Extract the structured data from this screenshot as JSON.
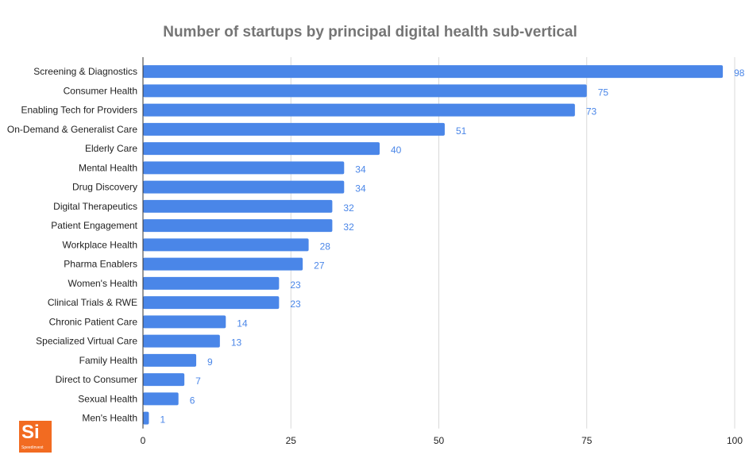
{
  "colors": {
    "bar": "#4a86e8",
    "value_label": "#4a86e8",
    "grid": "#d9d9d9",
    "axis": "#333333",
    "title": "#757575",
    "logo_bg": "#f26b21"
  },
  "logo": {
    "mark": "Si",
    "text": "Speedinvest"
  },
  "chart_data": {
    "type": "bar",
    "orientation": "horizontal",
    "title": "Number of startups by principal digital health sub-vertical",
    "xlabel": "",
    "ylabel": "",
    "xlim": [
      0,
      100
    ],
    "x_ticks": [
      0,
      25,
      50,
      75,
      100
    ],
    "grid": true,
    "data_labels": true,
    "categories": [
      "Screening & Diagnostics",
      "Consumer Health",
      "Enabling Tech for Providers",
      "On-Demand & Generalist Care",
      "Elderly Care",
      "Mental Health",
      "Drug Discovery",
      "Digital Therapeutics",
      "Patient Engagement",
      "Workplace Health",
      "Pharma Enablers",
      "Women's Health",
      "Clinical Trials & RWE",
      "Chronic Patient Care",
      "Specialized Virtual Care",
      "Family Health",
      "Direct to Consumer",
      "Sexual Health",
      "Men's Health"
    ],
    "values": [
      98,
      75,
      73,
      51,
      40,
      34,
      34,
      32,
      32,
      28,
      27,
      23,
      23,
      14,
      13,
      9,
      7,
      6,
      1
    ]
  }
}
